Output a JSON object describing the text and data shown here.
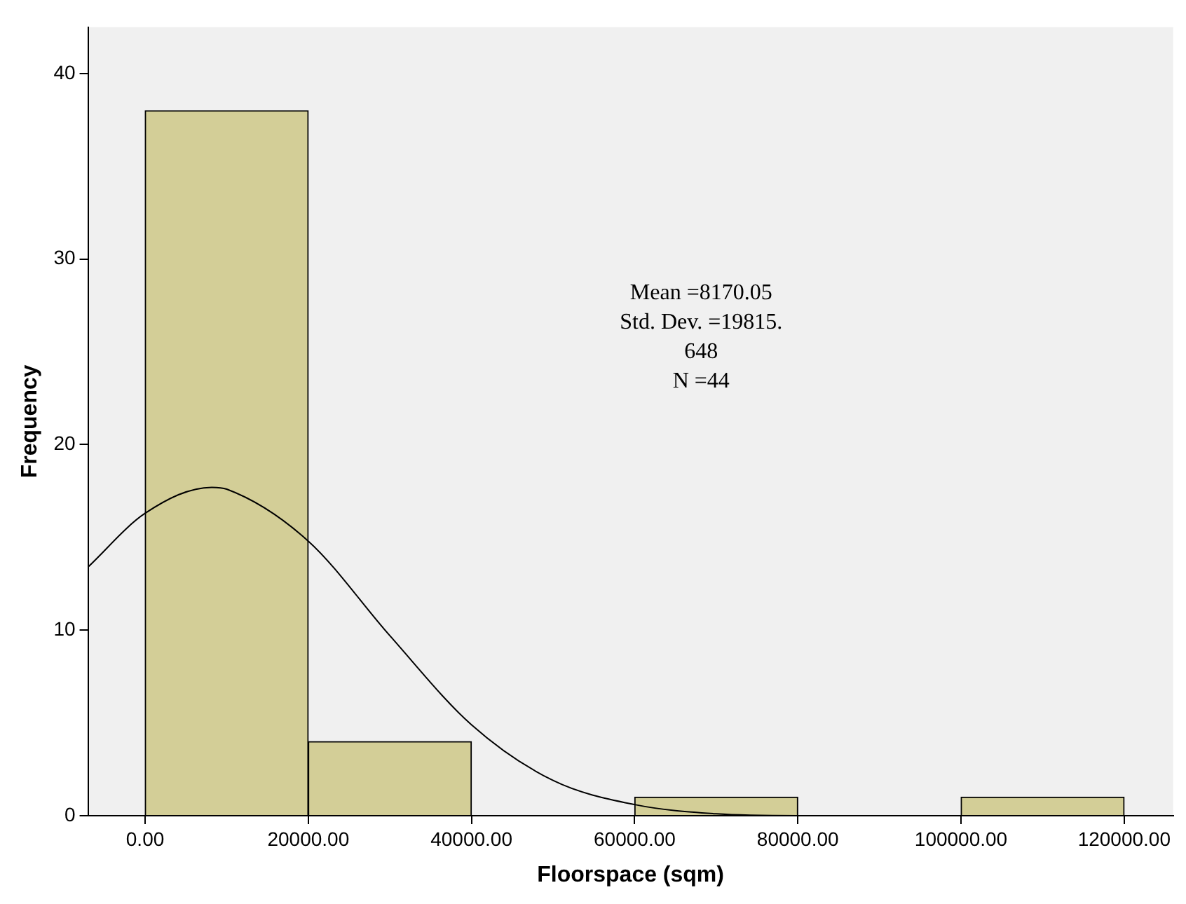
{
  "chart_data": {
    "type": "histogram",
    "xlabel": "Floorspace (sqm)",
    "ylabel": "Frequency",
    "bins": [
      0,
      20000,
      40000,
      60000,
      80000,
      100000,
      120000
    ],
    "values": [
      38,
      4,
      0,
      1,
      0,
      1
    ],
    "color": "#d3ce97",
    "series": [
      {
        "type": "line",
        "color": "#000000",
        "x": [
          -7000,
          0,
          8170,
          10000,
          20000,
          30000,
          40000,
          50000,
          60000,
          70000,
          80000,
          100000,
          126000
        ],
        "values": [
          13.4,
          16.3,
          17.7,
          17.6,
          14.8,
          9.7,
          4.9,
          1.9,
          0.6,
          0.1,
          0,
          0,
          0
        ]
      }
    ],
    "xlim": [
      -7000,
      126000
    ],
    "ylim": [
      0,
      42.5
    ],
    "xticks": [
      {
        "value": 0,
        "label": "0.00"
      },
      {
        "value": 20000,
        "label": "20000.00"
      },
      {
        "value": 40000,
        "label": "40000.00"
      },
      {
        "value": 60000,
        "label": "60000.00"
      },
      {
        "value": 80000,
        "label": "80000.00"
      },
      {
        "value": 100000,
        "label": "100000.00"
      },
      {
        "value": 120000,
        "label": "120000.00"
      }
    ],
    "yticks": [
      0,
      10,
      20,
      30,
      40
    ],
    "grid": false,
    "legend": false,
    "marker": "none",
    "annotations": [
      "Mean =8170.05",
      "Std. Dev. =19815.",
      "648",
      "N =44"
    ]
  }
}
